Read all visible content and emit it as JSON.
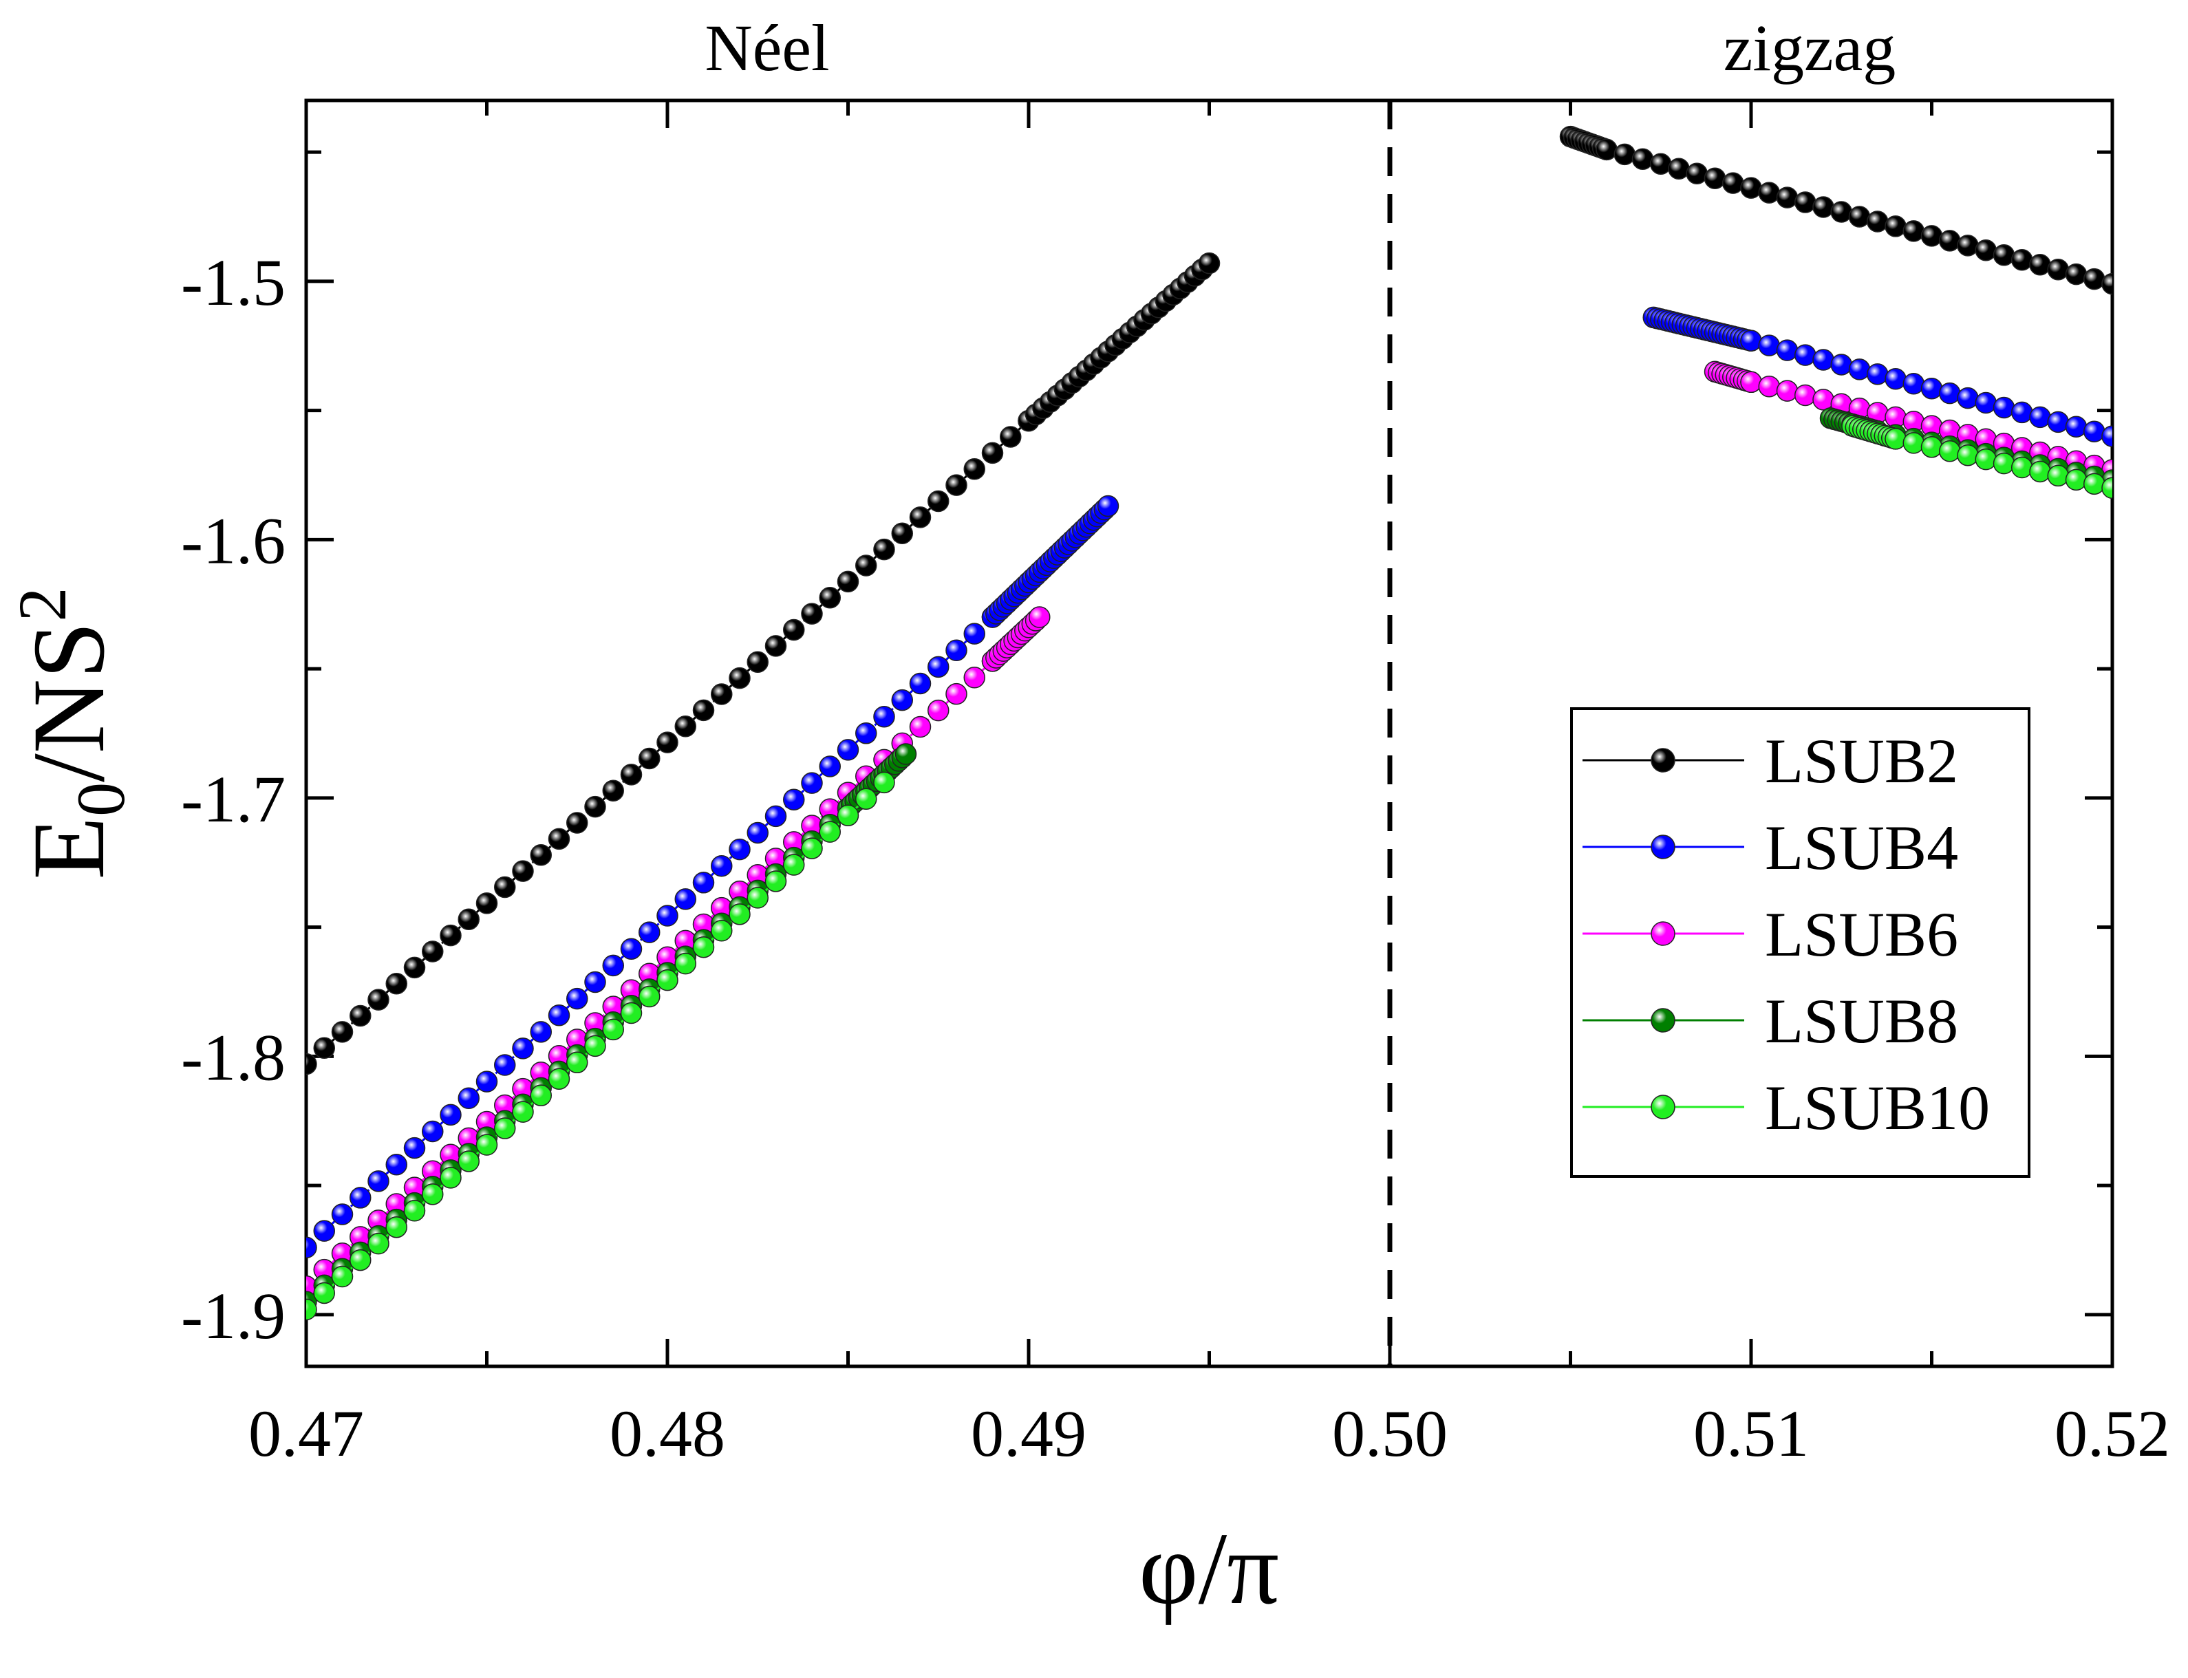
{
  "chart_data": {
    "type": "scatter",
    "xlabel": "φ/π",
    "ylabel": {
      "base": "E",
      "sub": "0",
      "mid": "/NS",
      "sup": "2"
    },
    "xlim": [
      0.47,
      0.52
    ],
    "ylim": [
      -1.92,
      -1.43
    ],
    "xticks": [
      0.47,
      0.48,
      0.49,
      0.5,
      0.51,
      0.52
    ],
    "xtick_labels": [
      "0.47",
      "0.48",
      "0.49",
      "0.50",
      "0.51",
      "0.52"
    ],
    "yticks": [
      -1.9,
      -1.8,
      -1.7,
      -1.6,
      -1.5
    ],
    "ytick_labels": [
      "-1.9",
      "-1.8",
      "-1.7",
      "-1.6",
      "-1.5"
    ],
    "regions": {
      "left": "Néel",
      "right": "zigzag"
    },
    "divider_x": 0.5,
    "legend_position": "right",
    "series": [
      {
        "name": "LSUB2",
        "color": "#000000",
        "segments": [
          {
            "x0": 0.47,
            "x1": 0.49,
            "step": 0.0005,
            "y0": -1.803,
            "y1": -1.554
          },
          {
            "x0": 0.49,
            "x1": 0.495,
            "step": 0.0002,
            "y0": -1.554,
            "y1": -1.493
          },
          {
            "x0": 0.505,
            "x1": 0.506,
            "step": 0.0001,
            "y0": -1.444,
            "y1": -1.449
          },
          {
            "x0": 0.506,
            "x1": 0.52,
            "step": 0.0005,
            "y0": -1.449,
            "y1": -1.501
          }
        ]
      },
      {
        "name": "LSUB4",
        "color": "#0000ff",
        "segments": [
          {
            "x0": 0.47,
            "x1": 0.489,
            "step": 0.0005,
            "y0": -1.874,
            "y1": -1.63
          },
          {
            "x0": 0.489,
            "x1": 0.4922,
            "step": 0.0001,
            "y0": -1.63,
            "y1": -1.587
          },
          {
            "x0": 0.5073,
            "x1": 0.51,
            "step": 0.0001,
            "y0": -1.514,
            "y1": -1.523
          },
          {
            "x0": 0.51,
            "x1": 0.52,
            "step": 0.0005,
            "y0": -1.523,
            "y1": -1.56
          }
        ]
      },
      {
        "name": "LSUB6",
        "color": "#ff00ff",
        "segments": [
          {
            "x0": 0.47,
            "x1": 0.489,
            "step": 0.0005,
            "y0": -1.889,
            "y1": -1.647
          },
          {
            "x0": 0.489,
            "x1": 0.4903,
            "step": 0.0001,
            "y0": -1.647,
            "y1": -1.63
          },
          {
            "x0": 0.509,
            "x1": 0.51,
            "step": 0.0001,
            "y0": -1.535,
            "y1": -1.539
          },
          {
            "x0": 0.51,
            "x1": 0.52,
            "step": 0.0005,
            "y0": -1.539,
            "y1": -1.573
          }
        ]
      },
      {
        "name": "LSUB8",
        "color": "#007f00",
        "segments": [
          {
            "x0": 0.47,
            "x1": 0.485,
            "step": 0.0005,
            "y0": -1.895,
            "y1": -1.704
          },
          {
            "x0": 0.485,
            "x1": 0.4866,
            "step": 0.0001,
            "y0": -1.704,
            "y1": -1.683
          },
          {
            "x0": 0.5122,
            "x1": 0.5135,
            "step": 0.0001,
            "y0": -1.553,
            "y1": -1.558
          },
          {
            "x0": 0.5135,
            "x1": 0.52,
            "step": 0.0005,
            "y0": -1.558,
            "y1": -1.577
          }
        ]
      },
      {
        "name": "LSUB10",
        "color": "#22ee22",
        "segments": [
          {
            "x0": 0.47,
            "x1": 0.486,
            "step": 0.0005,
            "y0": -1.898,
            "y1": -1.694
          },
          {
            "x0": 0.5128,
            "x1": 0.514,
            "step": 0.0001,
            "y0": -1.556,
            "y1": -1.561
          },
          {
            "x0": 0.514,
            "x1": 0.52,
            "step": 0.0005,
            "y0": -1.561,
            "y1": -1.58
          }
        ]
      }
    ]
  }
}
